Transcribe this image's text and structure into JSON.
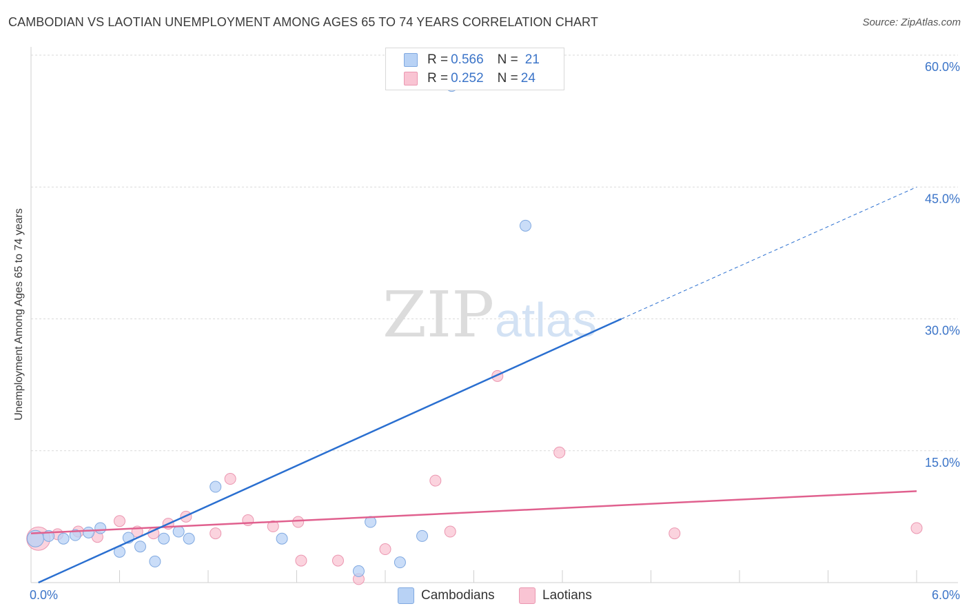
{
  "header": {
    "title": "CAMBODIAN VS LAOTIAN UNEMPLOYMENT AMONG AGES 65 TO 74 YEARS CORRELATION CHART",
    "source": "Source: ZipAtlas.com"
  },
  "watermark": {
    "zip": "ZIP",
    "atlas": "atlas"
  },
  "legend": {
    "rows": [
      {
        "r_label": "R = ",
        "r_value": "0.566",
        "n_label": "N = ",
        "n_value": "21"
      },
      {
        "r_label": "R = ",
        "r_value": "0.252",
        "n_label": "N = ",
        "n_value": "24"
      }
    ]
  },
  "colors": {
    "cambodians_fill": "#b8d2f5",
    "cambodians_stroke": "#7fa8e0",
    "cambodians_line": "#2a6fd0",
    "laotians_fill": "#f9c4d3",
    "laotians_stroke": "#eb96b0",
    "laotians_line": "#e0608e",
    "axis_label": "#3b74c8",
    "grid": "#d9d9d9"
  },
  "chart_data": {
    "type": "scatter",
    "title": "CAMBODIAN VS LAOTIAN UNEMPLOYMENT AMONG AGES 65 TO 74 YEARS CORRELATION CHART",
    "xlabel": "",
    "ylabel": "Unemployment Among Ages 65 to 74 years",
    "xlim": [
      0,
      6
    ],
    "ylim": [
      0,
      60
    ],
    "x_tick_labels": [
      {
        "value": 0,
        "label": "0.0%"
      },
      {
        "value": 6,
        "label": "6.0%"
      }
    ],
    "y_tick_labels": [
      {
        "value": 15,
        "label": "15.0%"
      },
      {
        "value": 30,
        "label": "30.0%"
      },
      {
        "value": 45,
        "label": "45.0%"
      },
      {
        "value": 60,
        "label": "60.0%"
      }
    ],
    "grid": true,
    "legend_position": "bottom-center",
    "series": [
      {
        "name": "Cambodians",
        "r": 0.566,
        "n": 21,
        "points": [
          [
            0.03,
            5.0
          ],
          [
            0.12,
            5.3
          ],
          [
            0.22,
            5.0
          ],
          [
            0.3,
            5.4
          ],
          [
            0.39,
            5.7
          ],
          [
            0.47,
            6.2
          ],
          [
            0.6,
            3.5
          ],
          [
            0.66,
            5.1
          ],
          [
            0.74,
            4.1
          ],
          [
            0.84,
            2.4
          ],
          [
            0.9,
            5.0
          ],
          [
            1.0,
            5.8
          ],
          [
            1.07,
            5.0
          ],
          [
            1.25,
            10.9
          ],
          [
            1.7,
            5.0
          ],
          [
            2.22,
            1.3
          ],
          [
            2.3,
            6.9
          ],
          [
            2.5,
            2.3
          ],
          [
            2.65,
            5.3
          ],
          [
            2.85,
            56.5
          ],
          [
            3.35,
            40.6
          ]
        ],
        "trend": {
          "x_start": 0.05,
          "y_start": 0.0,
          "x_solid_end": 4.0,
          "y_solid_end": 30.0,
          "x_dash_end": 6.0,
          "y_dash_end": 45.0
        }
      },
      {
        "name": "Laotians",
        "r": 0.252,
        "n": 24,
        "points": [
          [
            0.05,
            5.0
          ],
          [
            0.18,
            5.5
          ],
          [
            0.32,
            5.8
          ],
          [
            0.45,
            5.2
          ],
          [
            0.6,
            7.0
          ],
          [
            0.72,
            5.8
          ],
          [
            0.83,
            5.6
          ],
          [
            0.93,
            6.7
          ],
          [
            1.05,
            7.5
          ],
          [
            1.25,
            5.6
          ],
          [
            1.35,
            11.8
          ],
          [
            1.47,
            7.1
          ],
          [
            1.64,
            6.4
          ],
          [
            1.81,
            6.9
          ],
          [
            1.83,
            2.5
          ],
          [
            2.08,
            2.5
          ],
          [
            2.22,
            0.4
          ],
          [
            2.4,
            3.8
          ],
          [
            2.74,
            11.6
          ],
          [
            2.84,
            5.8
          ],
          [
            3.16,
            23.5
          ],
          [
            3.58,
            14.8
          ],
          [
            4.36,
            5.6
          ],
          [
            6.0,
            6.2
          ]
        ],
        "trend": {
          "x_start": 0.0,
          "y_start": 5.6,
          "x_end": 6.0,
          "y_end": 10.4
        }
      }
    ]
  },
  "bottom_legend": {
    "items": [
      {
        "label": "Cambodians"
      },
      {
        "label": "Laotians"
      }
    ]
  }
}
